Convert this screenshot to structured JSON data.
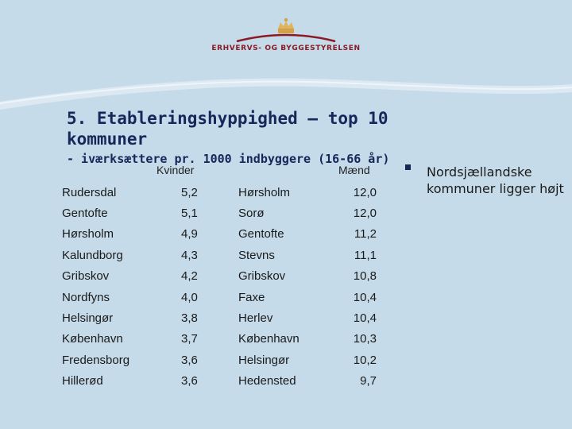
{
  "header": {
    "brand": "ERHVERVS- OG BYGGESTYRELSEN"
  },
  "slide": {
    "title": "5. Etableringshyppighed – top 10 kommuner",
    "subtitle": "- iværksættere pr. 1000 indbyggere (16-66 år)"
  },
  "table": {
    "headers": {
      "women": "Kvinder",
      "men": "Mænd"
    },
    "rows": [
      {
        "w_name": "Rudersdal",
        "w_val": "5,2",
        "m_name": "Hørsholm",
        "m_val": "12,0"
      },
      {
        "w_name": "Gentofte",
        "w_val": "5,1",
        "m_name": "Sorø",
        "m_val": "12,0"
      },
      {
        "w_name": "Hørsholm",
        "w_val": "4,9",
        "m_name": "Gentofte",
        "m_val": "11,2"
      },
      {
        "w_name": "Kalundborg",
        "w_val": "4,3",
        "m_name": "Stevns",
        "m_val": "11,1"
      },
      {
        "w_name": "Gribskov",
        "w_val": "4,2",
        "m_name": "Gribskov",
        "m_val": "10,8"
      },
      {
        "w_name": "Nordfyns",
        "w_val": "4,0",
        "m_name": "Faxe",
        "m_val": "10,4"
      },
      {
        "w_name": "Helsingør",
        "w_val": "3,8",
        "m_name": "Herlev",
        "m_val": "10,4"
      },
      {
        "w_name": "København",
        "w_val": "3,7",
        "m_name": "København",
        "m_val": "10,3"
      },
      {
        "w_name": "Fredensborg",
        "w_val": "3,6",
        "m_name": "Helsingør",
        "m_val": "10,2"
      },
      {
        "w_name": "Hillerød",
        "w_val": "3,6",
        "m_name": "Hedensted",
        "m_val": "9,7"
      }
    ]
  },
  "note": {
    "text": "Nordsjællandske kommuner ligger højt"
  },
  "colors": {
    "background": "#c5dbe9",
    "title": "#16275a",
    "brand": "#8a1a24",
    "crown": "#d2a24a"
  }
}
